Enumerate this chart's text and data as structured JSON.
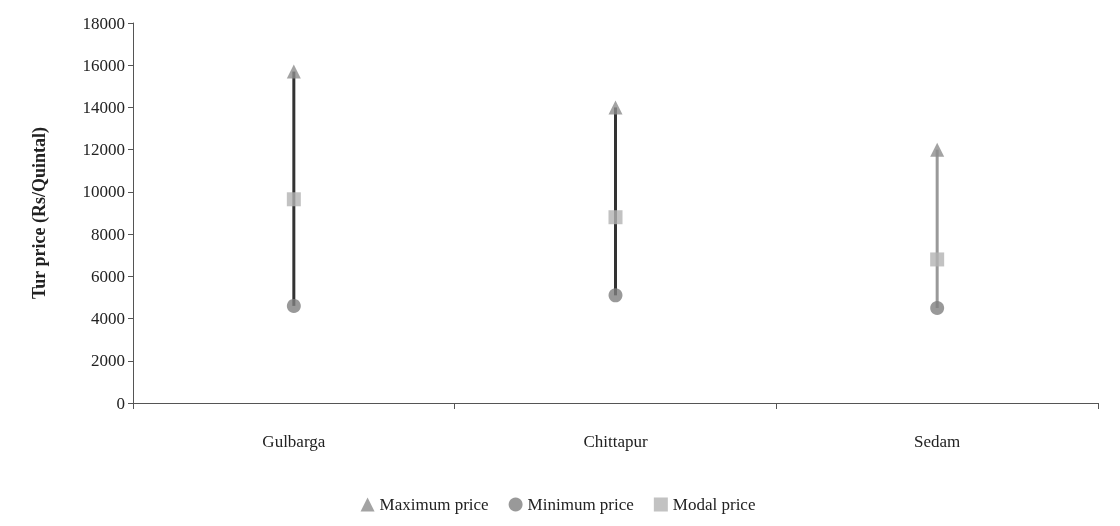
{
  "chart_data": {
    "type": "scatter",
    "ylabel": "Tur price (Rs/Quintal)",
    "categories": [
      "Gulbarga",
      "Chittapur",
      "Sedam"
    ],
    "series": [
      {
        "type": "bar",
        "base": [
          4600,
          5100,
          4500
        ],
        "values": [
          11100,
          8900,
          7500
        ],
        "colors": [
          "#333333",
          "#333333",
          "#999999"
        ]
      },
      {
        "name": "Maximum price",
        "color": "#8c8c8c",
        "marker": "triangle",
        "values": [
          15700,
          14000,
          12000
        ]
      },
      {
        "name": "Minimum price",
        "color": "#7f7f7f",
        "marker": "circle",
        "values": [
          4600,
          5100,
          4500
        ]
      },
      {
        "name": "Modal price",
        "color": "#b3b3b3",
        "marker": "square",
        "values": [
          9650,
          8800,
          6800
        ]
      }
    ],
    "ylim": [
      0,
      18000
    ],
    "yticks": [
      0,
      2000,
      4000,
      6000,
      8000,
      10000,
      12000,
      14000,
      16000,
      18000
    ],
    "grid": false,
    "legend": "bottom"
  }
}
